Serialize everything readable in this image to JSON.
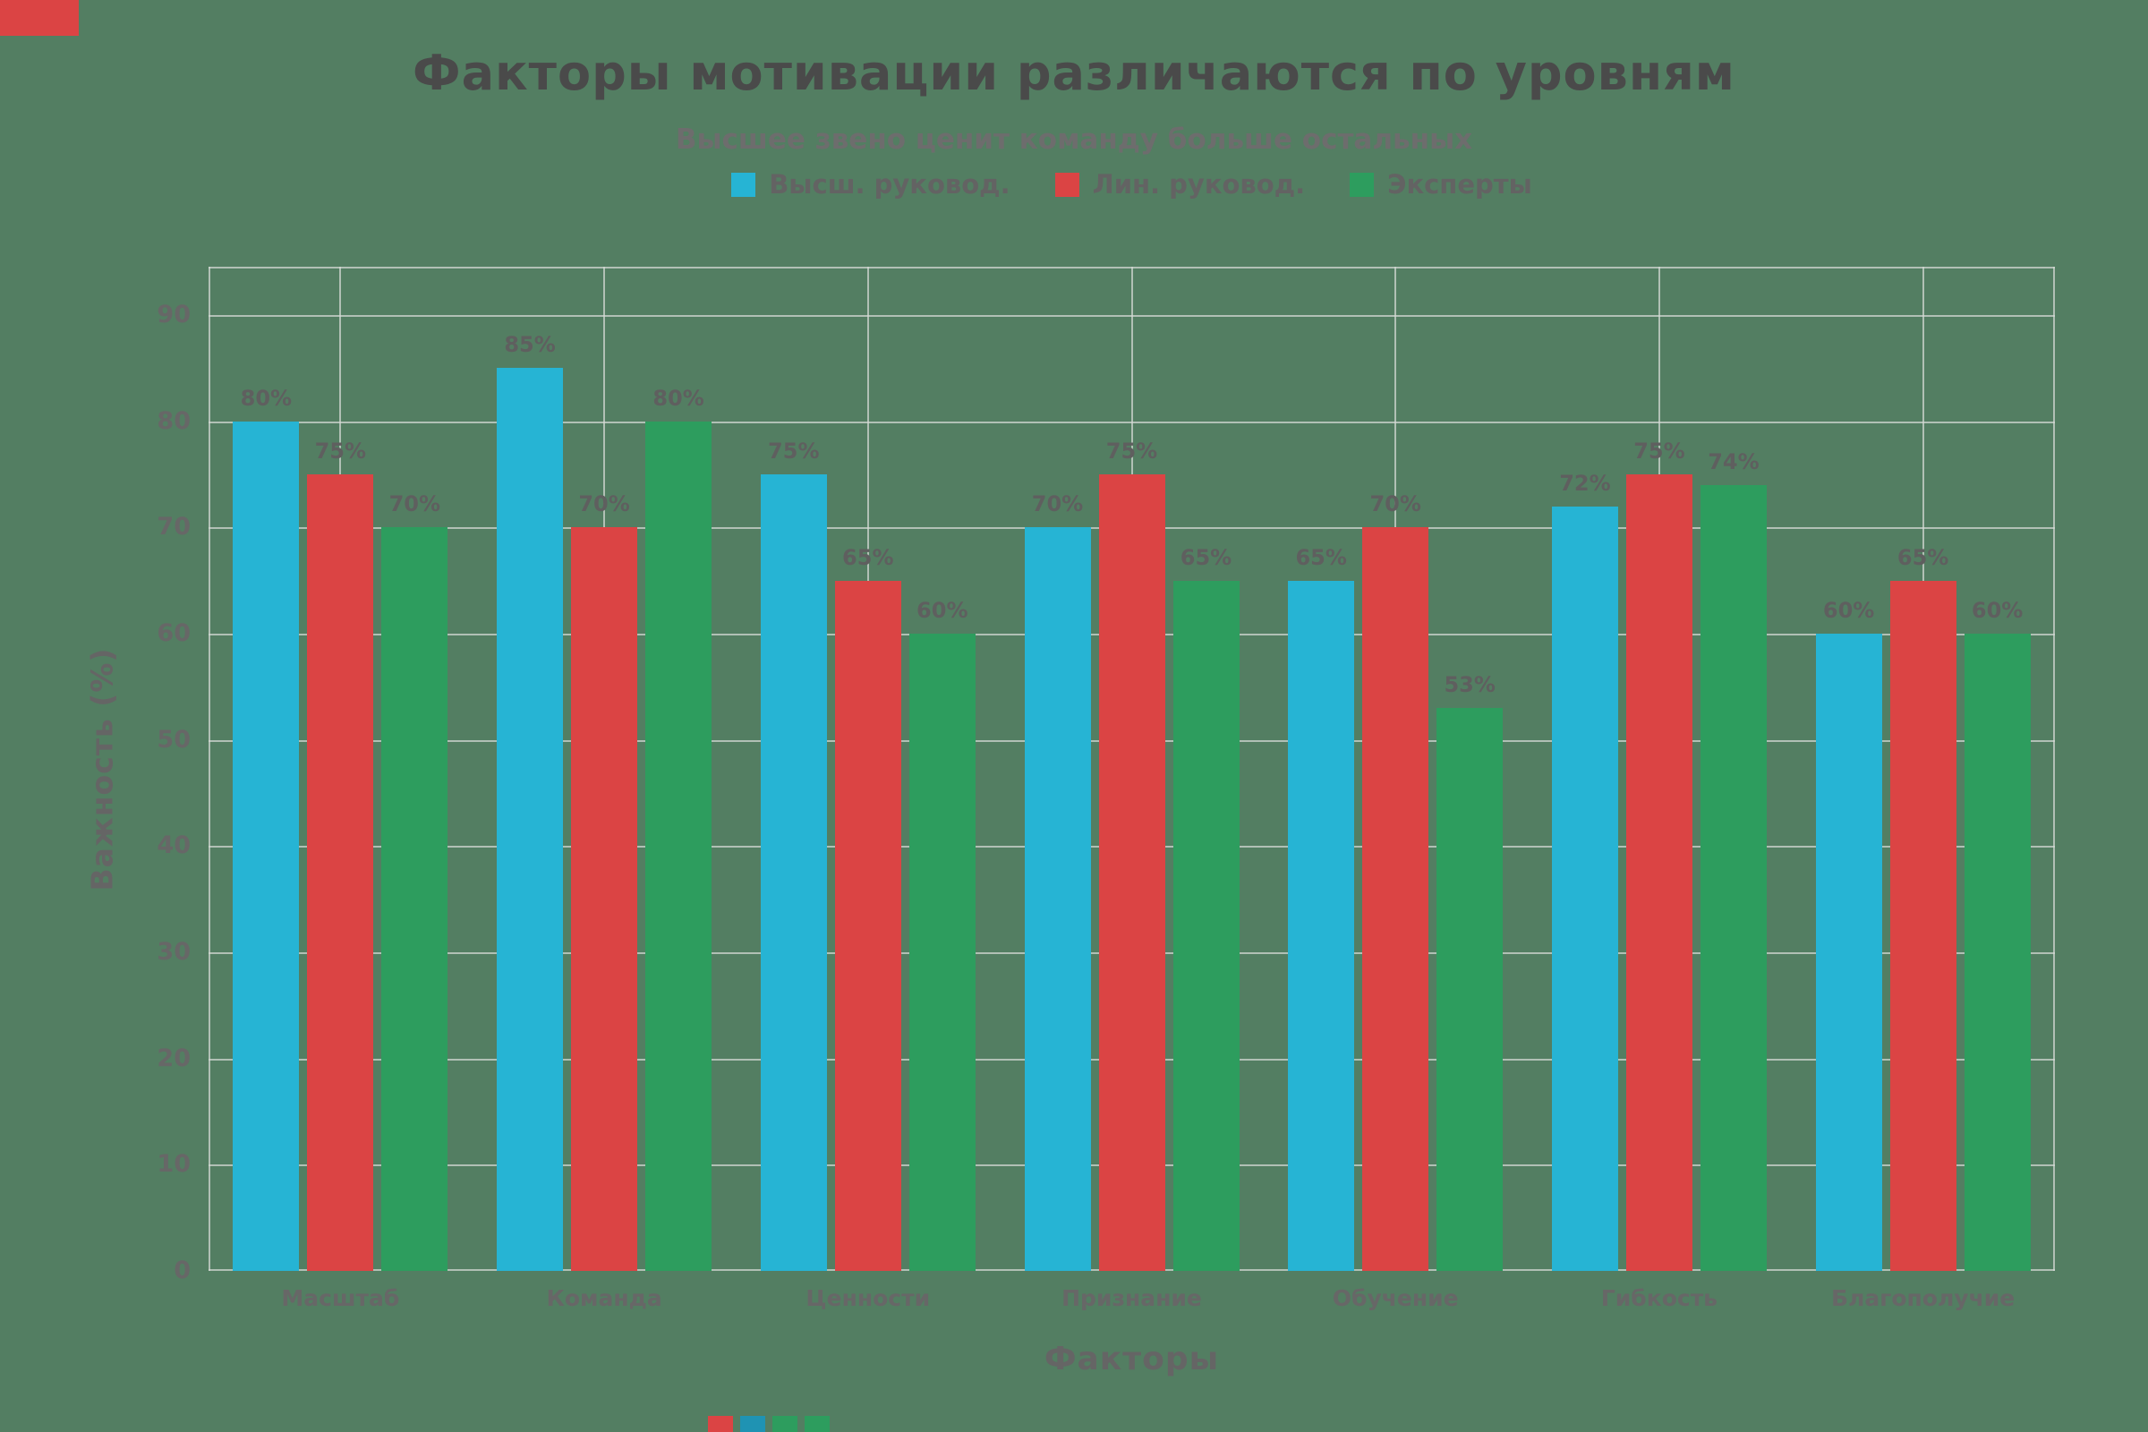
{
  "header": {
    "title": "Факторы мотивации различаются по уровням",
    "subtitle": "Высшее звено ценит команду больше остальных"
  },
  "chart_data": {
    "type": "bar",
    "title": "Факторы мотивации различаются по уровням",
    "subtitle": "Высшее звено ценит команду больше остальных",
    "xlabel": "Факторы",
    "ylabel": "Важность (%)",
    "categories": [
      "Масштаб",
      "Команда",
      "Ценности",
      "Признание",
      "Обучение",
      "Гибкость",
      "Благополучие"
    ],
    "series": [
      {
        "name": "Высш. руковод.",
        "color": "#26b4d4",
        "values": [
          80,
          85,
          75,
          70,
          65,
          72,
          60
        ]
      },
      {
        "name": "Лин. руковод.",
        "color": "#db4444",
        "values": [
          75,
          70,
          65,
          75,
          70,
          75,
          65
        ]
      },
      {
        "name": "Эксперты",
        "color": "#2d9d5e",
        "values": [
          70,
          80,
          60,
          65,
          53,
          74,
          60
        ]
      }
    ],
    "value_suffix": "%",
    "ylim": [
      0,
      94.5
    ],
    "yticks": [
      0,
      10,
      20,
      30,
      40,
      50,
      60,
      70,
      80,
      90
    ],
    "grid": true,
    "legend_position": "top-center",
    "background_color": "#537e62",
    "grid_color": "#d5dad5"
  },
  "artifacts": {
    "top_left_rect_color": "#db4444",
    "bottom_square_colors": [
      "#db4444",
      "#1f93b3",
      "#2d9d5e",
      "#2d9d5e"
    ]
  }
}
